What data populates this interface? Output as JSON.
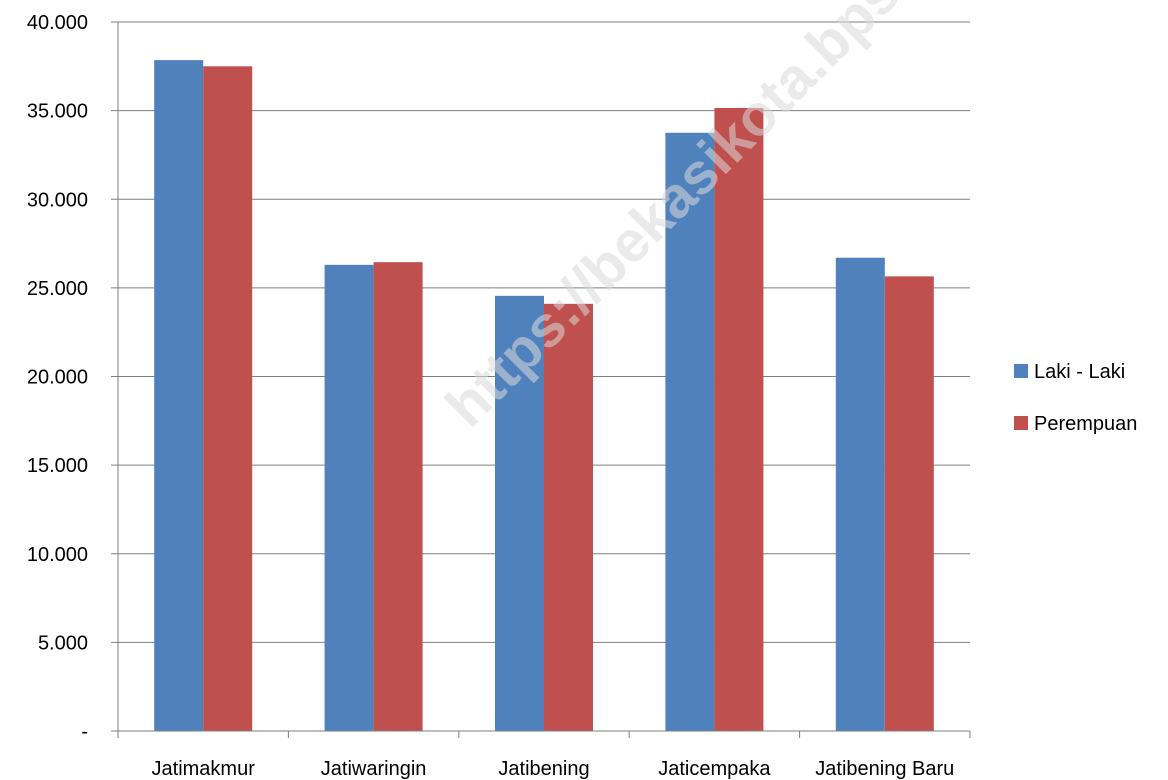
{
  "watermark_text": "https://bekasikota.bps.go.id",
  "colors": {
    "laki_laki": "#4F81BD",
    "perempuan": "#C0504D",
    "grid": "#7f7f7f",
    "axis": "#7f7f7f"
  },
  "chart_data": {
    "type": "bar",
    "title": "",
    "xlabel": "",
    "ylabel": "",
    "categories": [
      "Jatimakmur",
      "Jatiwaringin",
      "Jatibening",
      "Jaticempaka",
      "Jatibening Baru"
    ],
    "series": [
      {
        "name": "Laki - Laki",
        "color": "#4F81BD",
        "values": [
          37850,
          26300,
          24550,
          33750,
          26700
        ]
      },
      {
        "name": "Perempuan",
        "color": "#C0504D",
        "values": [
          37500,
          26450,
          24100,
          35150,
          25650
        ]
      }
    ],
    "ylim": [
      0,
      40000
    ],
    "yticks": [
      0,
      5000,
      10000,
      15000,
      20000,
      25000,
      30000,
      35000,
      40000
    ],
    "ytick_labels": [
      "-",
      "5.000",
      "10.000",
      "15.000",
      "20.000",
      "25.000",
      "30.000",
      "35.000",
      "40.000"
    ],
    "grid": true,
    "legend_position": "right"
  }
}
